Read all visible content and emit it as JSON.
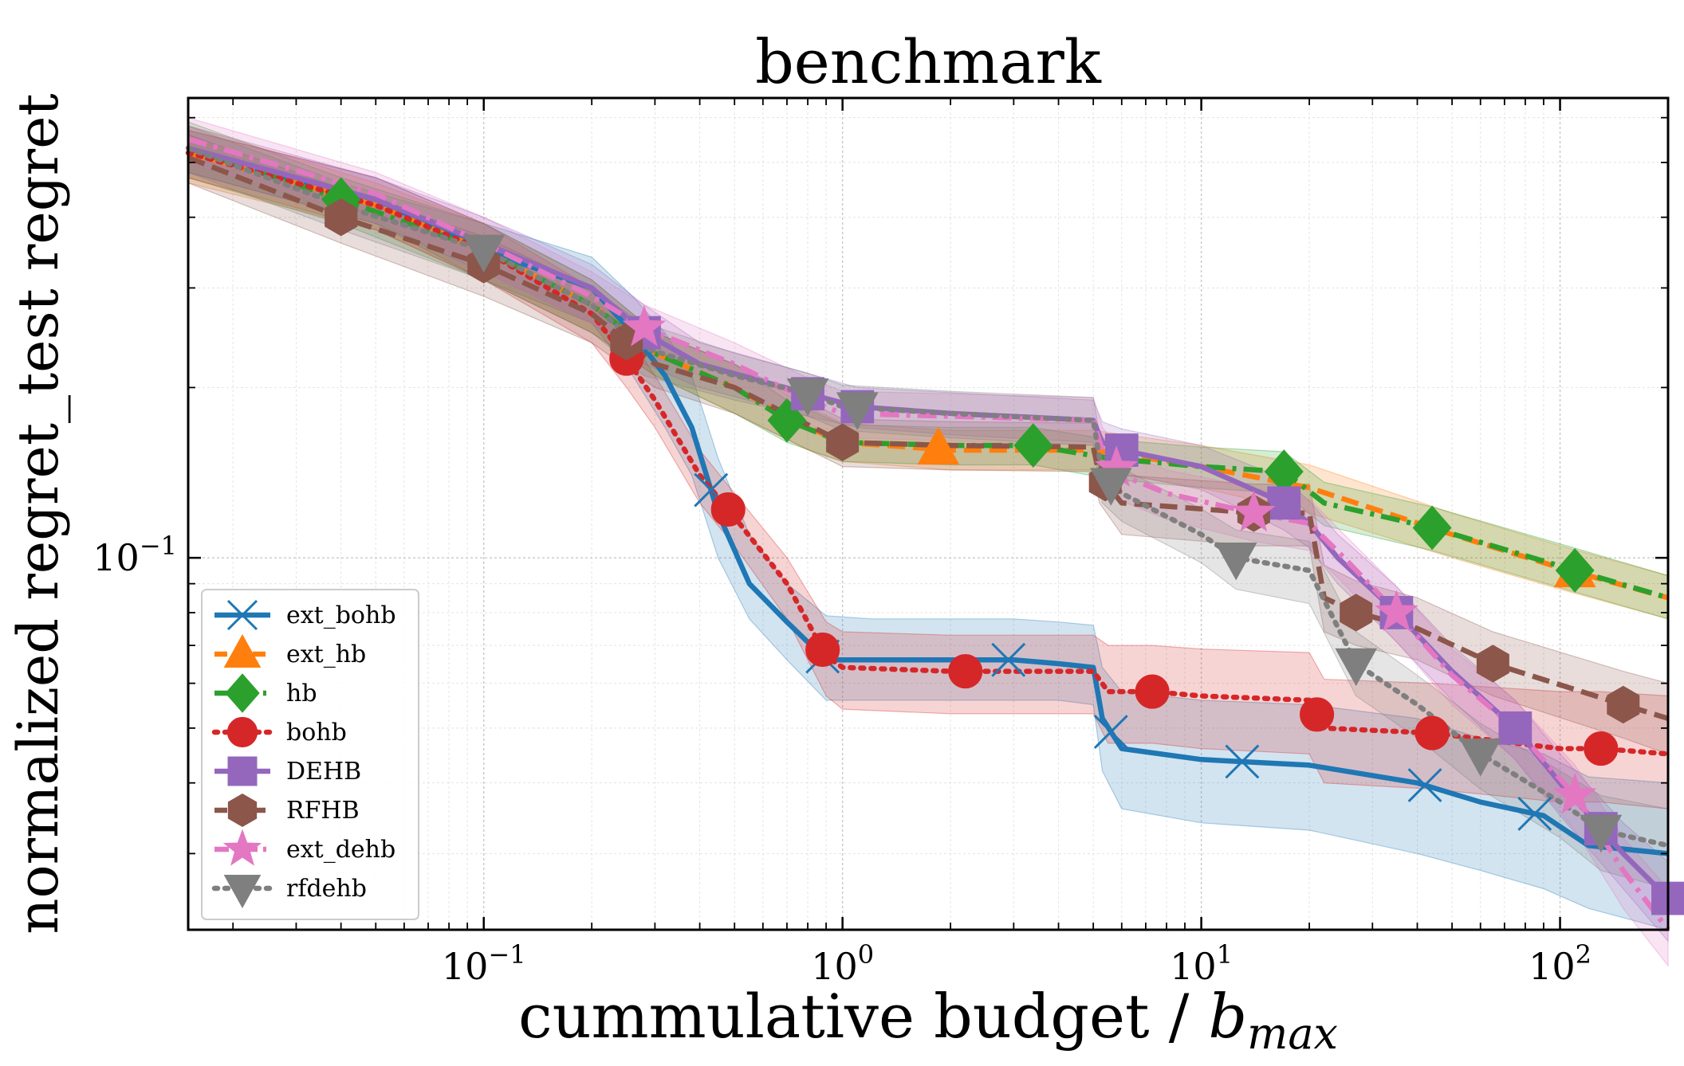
{
  "chart_data": {
    "type": "line",
    "title": "benchmark",
    "xlabel": "cummulative budget / ",
    "xlabel_math": "b",
    "xlabel_sub": "max",
    "ylabel": "normalized regret_test regret",
    "xscale": "log",
    "yscale": "log",
    "xlim": [
      0.015,
      200
    ],
    "ylim": [
      0.022,
      0.65
    ],
    "x_ticks": [
      {
        "value": 0.1,
        "base": "10",
        "exp": "−1"
      },
      {
        "value": 1,
        "base": "10",
        "exp": "0"
      },
      {
        "value": 10,
        "base": "10",
        "exp": "1"
      },
      {
        "value": 100,
        "base": "10",
        "exp": "2"
      }
    ],
    "y_ticks": [
      {
        "value": 0.1,
        "base": "10",
        "exp": "−1"
      }
    ],
    "grid": true,
    "legend_position": "lower-left",
    "series": [
      {
        "name": "ext_bohb",
        "color": "#1f77b4",
        "dash": "solid",
        "marker": "x",
        "x": [
          0.015,
          0.05,
          0.1,
          0.2,
          0.26,
          0.32,
          0.38,
          0.45,
          0.55,
          0.7,
          0.9,
          1.2,
          2,
          3,
          4,
          5,
          5.3,
          6,
          10,
          20,
          40,
          60,
          90,
          120,
          200
        ],
        "y": [
          0.52,
          0.43,
          0.35,
          0.3,
          0.25,
          0.21,
          0.17,
          0.12,
          0.09,
          0.077,
          0.066,
          0.066,
          0.066,
          0.066,
          0.065,
          0.064,
          0.052,
          0.046,
          0.044,
          0.043,
          0.04,
          0.037,
          0.035,
          0.031,
          0.03
        ],
        "marker_x": [
          0.43,
          0.88,
          2.9,
          5.6,
          13,
          42,
          85
        ],
        "band_lo": [
          0.48,
          0.39,
          0.31,
          0.26,
          0.21,
          0.17,
          0.14,
          0.1,
          0.078,
          0.066,
          0.056,
          0.056,
          0.056,
          0.056,
          0.056,
          0.055,
          0.042,
          0.036,
          0.034,
          0.033,
          0.03,
          0.028,
          0.026,
          0.024,
          0.022
        ],
        "band_hi": [
          0.57,
          0.47,
          0.39,
          0.34,
          0.29,
          0.25,
          0.21,
          0.15,
          0.11,
          0.09,
          0.079,
          0.078,
          0.078,
          0.078,
          0.077,
          0.076,
          0.064,
          0.058,
          0.056,
          0.055,
          0.052,
          0.048,
          0.045,
          0.041,
          0.04
        ]
      },
      {
        "name": "ext_hb",
        "color": "#ff7f0e",
        "dash": "dashed",
        "marker": "^",
        "x": [
          0.015,
          0.05,
          0.1,
          0.2,
          0.3,
          0.5,
          0.8,
          1.0,
          2,
          5,
          10,
          20,
          50,
          100,
          200
        ],
        "y": [
          0.52,
          0.42,
          0.35,
          0.28,
          0.23,
          0.2,
          0.17,
          0.16,
          0.155,
          0.155,
          0.145,
          0.133,
          0.11,
          0.096,
          0.085
        ],
        "marker_x": [
          1.85,
          110
        ],
        "band_lo": [
          0.46,
          0.38,
          0.31,
          0.25,
          0.21,
          0.18,
          0.155,
          0.148,
          0.143,
          0.143,
          0.133,
          0.12,
          0.1,
          0.088,
          0.078
        ],
        "band_hi": [
          0.58,
          0.46,
          0.39,
          0.31,
          0.25,
          0.22,
          0.185,
          0.173,
          0.168,
          0.168,
          0.158,
          0.146,
          0.12,
          0.105,
          0.093
        ]
      },
      {
        "name": "hb",
        "color": "#2ca02c",
        "dash": "dashdot",
        "marker": "D",
        "x": [
          0.015,
          0.04,
          0.1,
          0.2,
          0.3,
          0.5,
          0.7,
          1.0,
          2,
          3.4,
          5.5,
          10,
          17,
          22,
          44,
          110,
          200
        ],
        "y": [
          0.53,
          0.43,
          0.35,
          0.28,
          0.23,
          0.2,
          0.175,
          0.16,
          0.158,
          0.158,
          0.15,
          0.145,
          0.142,
          0.125,
          0.113,
          0.095,
          0.085
        ],
        "marker_x": [
          0.04,
          0.7,
          3.4,
          17,
          44,
          110
        ],
        "band_lo": [
          0.47,
          0.39,
          0.31,
          0.25,
          0.21,
          0.18,
          0.16,
          0.148,
          0.146,
          0.146,
          0.138,
          0.133,
          0.13,
          0.114,
          0.103,
          0.087,
          0.078
        ],
        "band_hi": [
          0.59,
          0.47,
          0.39,
          0.31,
          0.25,
          0.22,
          0.19,
          0.172,
          0.17,
          0.17,
          0.162,
          0.157,
          0.154,
          0.136,
          0.123,
          0.104,
          0.093
        ]
      },
      {
        "name": "bohb",
        "color": "#d62728",
        "dash": "dotted",
        "marker": "o",
        "x": [
          0.015,
          0.05,
          0.1,
          0.2,
          0.25,
          0.3,
          0.4,
          0.5,
          0.7,
          0.9,
          1.0,
          2,
          5,
          5.5,
          7.3,
          10,
          20,
          22,
          44,
          100,
          130,
          200
        ],
        "y": [
          0.52,
          0.42,
          0.35,
          0.27,
          0.225,
          0.19,
          0.14,
          0.118,
          0.09,
          0.067,
          0.064,
          0.063,
          0.063,
          0.058,
          0.058,
          0.057,
          0.056,
          0.05,
          0.049,
          0.046,
          0.046,
          0.045
        ],
        "marker_x": [
          0.25,
          0.48,
          0.88,
          2.2,
          7.3,
          21,
          44,
          130
        ],
        "band_lo": [
          0.47,
          0.38,
          0.31,
          0.24,
          0.2,
          0.17,
          0.125,
          0.105,
          0.078,
          0.057,
          0.054,
          0.053,
          0.053,
          0.047,
          0.047,
          0.046,
          0.045,
          0.04,
          0.039,
          0.037,
          0.037,
          0.036
        ],
        "band_hi": [
          0.57,
          0.47,
          0.39,
          0.3,
          0.25,
          0.21,
          0.155,
          0.13,
          0.1,
          0.077,
          0.074,
          0.073,
          0.073,
          0.07,
          0.07,
          0.069,
          0.068,
          0.061,
          0.06,
          0.058,
          0.058,
          0.057
        ]
      },
      {
        "name": "DEHB",
        "color": "#9467bd",
        "dash": "solid",
        "marker": "s",
        "x": [
          0.015,
          0.05,
          0.1,
          0.2,
          0.28,
          0.4,
          0.8,
          1.1,
          2,
          5,
          5.3,
          6,
          10,
          17,
          20,
          24,
          35,
          50,
          75,
          100,
          150,
          200
        ],
        "y": [
          0.53,
          0.43,
          0.36,
          0.3,
          0.25,
          0.22,
          0.195,
          0.185,
          0.18,
          0.175,
          0.16,
          0.155,
          0.145,
          0.125,
          0.115,
          0.1,
          0.08,
          0.063,
          0.05,
          0.04,
          0.03,
          0.025
        ],
        "marker_x": [
          0.28,
          0.8,
          1.1,
          6,
          17,
          35,
          75,
          130,
          200
        ],
        "band_lo": [
          0.48,
          0.39,
          0.32,
          0.26,
          0.22,
          0.2,
          0.178,
          0.17,
          0.165,
          0.16,
          0.146,
          0.141,
          0.132,
          0.112,
          0.104,
          0.09,
          0.071,
          0.056,
          0.044,
          0.035,
          0.026,
          0.021
        ],
        "band_hi": [
          0.58,
          0.47,
          0.4,
          0.33,
          0.28,
          0.24,
          0.212,
          0.2,
          0.196,
          0.19,
          0.174,
          0.169,
          0.158,
          0.138,
          0.126,
          0.11,
          0.089,
          0.07,
          0.056,
          0.045,
          0.034,
          0.029
        ]
      },
      {
        "name": "RFHB",
        "color": "#8c564b",
        "dash": "dashed",
        "marker": "h",
        "x": [
          0.015,
          0.04,
          0.1,
          0.2,
          0.3,
          0.5,
          1.0,
          2,
          5,
          5.2,
          6,
          10,
          14,
          20,
          22,
          27,
          40,
          65,
          150,
          200
        ],
        "y": [
          0.51,
          0.4,
          0.33,
          0.27,
          0.22,
          0.2,
          0.16,
          0.158,
          0.157,
          0.14,
          0.125,
          0.122,
          0.12,
          0.12,
          0.085,
          0.08,
          0.075,
          0.065,
          0.055,
          0.052
        ],
        "marker_x": [
          0.04,
          0.1,
          0.25,
          1.0,
          5.4,
          14,
          27,
          65,
          150
        ],
        "band_lo": [
          0.46,
          0.36,
          0.29,
          0.24,
          0.2,
          0.18,
          0.145,
          0.143,
          0.142,
          0.125,
          0.11,
          0.107,
          0.105,
          0.105,
          0.074,
          0.07,
          0.066,
          0.057,
          0.048,
          0.045
        ],
        "band_hi": [
          0.56,
          0.45,
          0.37,
          0.3,
          0.25,
          0.22,
          0.176,
          0.174,
          0.173,
          0.155,
          0.14,
          0.137,
          0.135,
          0.135,
          0.097,
          0.091,
          0.085,
          0.074,
          0.063,
          0.06
        ]
      },
      {
        "name": "ext_dehb",
        "color": "#e377c2",
        "dash": "dashdot",
        "marker": "*",
        "x": [
          0.015,
          0.05,
          0.1,
          0.2,
          0.28,
          0.5,
          0.8,
          1.0,
          2,
          5,
          5.3,
          6,
          8,
          14,
          20,
          25,
          35,
          50,
          75,
          110,
          150,
          200
        ],
        "y": [
          0.55,
          0.44,
          0.36,
          0.29,
          0.255,
          0.22,
          0.19,
          0.18,
          0.178,
          0.175,
          0.155,
          0.14,
          0.13,
          0.12,
          0.115,
          0.1,
          0.08,
          0.062,
          0.05,
          0.038,
          0.028,
          0.022
        ],
        "marker_x": [
          0.28,
          5.8,
          14,
          35,
          110
        ],
        "band_lo": [
          0.5,
          0.4,
          0.32,
          0.26,
          0.23,
          0.2,
          0.172,
          0.163,
          0.161,
          0.158,
          0.14,
          0.126,
          0.117,
          0.107,
          0.103,
          0.09,
          0.071,
          0.055,
          0.044,
          0.033,
          0.024,
          0.019
        ],
        "band_hi": [
          0.6,
          0.48,
          0.4,
          0.32,
          0.28,
          0.24,
          0.208,
          0.197,
          0.195,
          0.192,
          0.17,
          0.154,
          0.143,
          0.133,
          0.127,
          0.11,
          0.089,
          0.069,
          0.056,
          0.043,
          0.032,
          0.026
        ]
      },
      {
        "name": "rfdehb",
        "color": "#7f7f7f",
        "dash": "dotted",
        "marker": "v",
        "x": [
          0.015,
          0.04,
          0.1,
          0.2,
          0.28,
          0.5,
          0.8,
          1.0,
          2,
          5,
          5.3,
          6,
          10,
          12.5,
          20,
          27,
          40,
          60,
          100,
          130,
          200
        ],
        "y": [
          0.53,
          0.42,
          0.35,
          0.28,
          0.235,
          0.21,
          0.195,
          0.185,
          0.18,
          0.175,
          0.14,
          0.13,
          0.11,
          0.1,
          0.095,
          0.065,
          0.055,
          0.045,
          0.037,
          0.033,
          0.031
        ],
        "marker_x": [
          0.1,
          0.8,
          1.1,
          5.6,
          12.5,
          27,
          60,
          130
        ],
        "band_lo": [
          0.48,
          0.38,
          0.31,
          0.25,
          0.21,
          0.19,
          0.178,
          0.168,
          0.163,
          0.158,
          0.125,
          0.116,
          0.098,
          0.088,
          0.083,
          0.057,
          0.048,
          0.039,
          0.032,
          0.028,
          0.026
        ],
        "band_hi": [
          0.58,
          0.46,
          0.39,
          0.31,
          0.26,
          0.23,
          0.212,
          0.202,
          0.197,
          0.192,
          0.155,
          0.144,
          0.122,
          0.112,
          0.107,
          0.074,
          0.062,
          0.051,
          0.042,
          0.038,
          0.036
        ]
      }
    ]
  }
}
